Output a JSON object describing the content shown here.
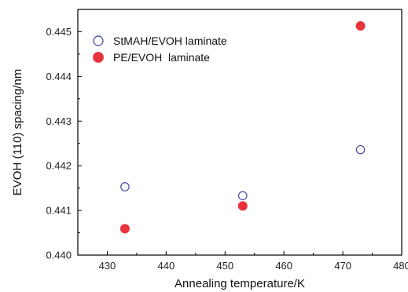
{
  "chart_data": {
    "type": "scatter",
    "title": "",
    "xlabel": "Annealing temperature/K",
    "ylabel": "EVOH (110) spacing/nm",
    "xlim": [
      425,
      480
    ],
    "ylim": [
      0.44,
      0.4455
    ],
    "x_ticks": [
      "430",
      "440",
      "450",
      "460",
      "470",
      "480"
    ],
    "y_ticks": [
      "0.440",
      "0.441",
      "0.442",
      "0.443",
      "0.444",
      "0.445"
    ],
    "grid": false,
    "legend_position": "top-left",
    "series": [
      {
        "name": "StMAH/EVOH laminate",
        "marker": "open-circle",
        "color": "#3a3aa8",
        "x": [
          433,
          453,
          473
        ],
        "y": [
          0.44153,
          0.44133,
          0.44236
        ]
      },
      {
        "name": "PE/EVOH  laminate",
        "marker": "filled-circle",
        "color": "#e8323c",
        "x": [
          433,
          453,
          473
        ],
        "y": [
          0.44059,
          0.4411,
          0.44513
        ]
      }
    ]
  }
}
